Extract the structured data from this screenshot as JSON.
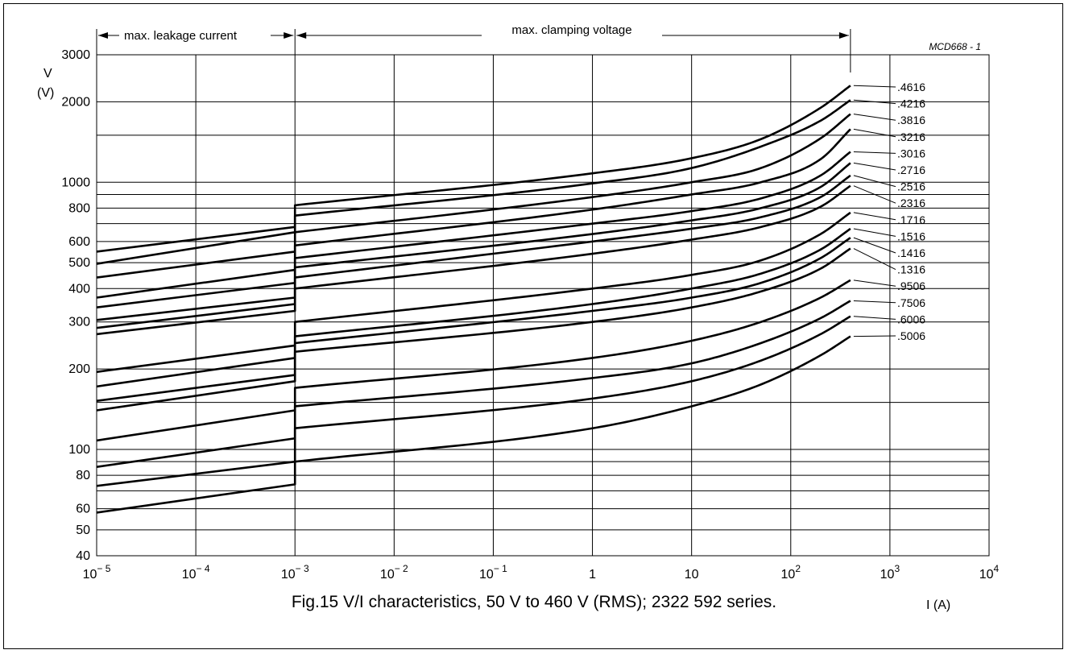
{
  "chart_data": {
    "type": "line",
    "title": "Fig.15  V/I characteristics, 50 V to 460 V (RMS); 2322 592 series.",
    "figure_code": "MCD668 - 1",
    "ylabel": "V",
    "ylabel_unit": "(V)",
    "xlabel": "I  (A)",
    "x_scale": "log",
    "y_scale": "log",
    "xlim": [
      1e-05,
      10000
    ],
    "ylim": [
      40,
      3000
    ],
    "x_ticks": [
      {
        "value": 1e-05,
        "base": "10",
        "exp": "− 5"
      },
      {
        "value": 0.0001,
        "base": "10",
        "exp": "− 4"
      },
      {
        "value": 0.001,
        "base": "10",
        "exp": "− 3"
      },
      {
        "value": 0.01,
        "base": "10",
        "exp": "− 2"
      },
      {
        "value": 0.1,
        "base": "10",
        "exp": "− 1"
      },
      {
        "value": 1,
        "base": "1",
        "exp": ""
      },
      {
        "value": 10,
        "base": "10",
        "exp": ""
      },
      {
        "value": 100,
        "base": "10",
        "exp": "2"
      },
      {
        "value": 1000,
        "base": "10",
        "exp": "3"
      },
      {
        "value": 10000,
        "base": "10",
        "exp": "4"
      }
    ],
    "y_tick_labels": [
      {
        "value": 40,
        "label": "40"
      },
      {
        "value": 50,
        "label": "50"
      },
      {
        "value": 60,
        "label": "60"
      },
      {
        "value": 80,
        "label": "80"
      },
      {
        "value": 100,
        "label": "100"
      },
      {
        "value": 200,
        "label": "200"
      },
      {
        "value": 300,
        "label": "300"
      },
      {
        "value": 400,
        "label": "400"
      },
      {
        "value": 500,
        "label": "500"
      },
      {
        "value": 600,
        "label": "600"
      },
      {
        "value": 800,
        "label": "800"
      },
      {
        "value": 1000,
        "label": "1000"
      },
      {
        "value": 2000,
        "label": "2000"
      },
      {
        "value": 3000,
        "label": "3000"
      }
    ],
    "y_gridlines": [
      50,
      60,
      70,
      80,
      90,
      100,
      150,
      200,
      300,
      400,
      500,
      600,
      700,
      800,
      900,
      1000,
      1500,
      2000
    ],
    "grid": true,
    "annotations": {
      "leakage_label": "max. leakage current",
      "clamping_label": "max. clamping voltage",
      "leakage_range": [
        1e-05,
        0.001
      ],
      "clamping_range": [
        0.001,
        400
      ]
    },
    "series": [
      {
        "name": ".4616",
        "label_v": 2300,
        "leak": [
          [
            1e-05,
            550
          ],
          [
            0.001,
            680
          ]
        ],
        "clamp": [
          [
            0.001,
            820
          ],
          [
            1,
            1080
          ],
          [
            10,
            1230
          ],
          [
            50,
            1450
          ],
          [
            200,
            1900
          ],
          [
            400,
            2300
          ]
        ]
      },
      {
        "name": ".4216",
        "label_v": 2040,
        "leak": [
          [
            1e-05,
            495
          ],
          [
            0.001,
            650
          ]
        ],
        "clamp": [
          [
            0.001,
            750
          ],
          [
            1,
            990
          ],
          [
            10,
            1130
          ],
          [
            50,
            1360
          ],
          [
            200,
            1700
          ],
          [
            400,
            2030
          ]
        ]
      },
      {
        "name": ".3816",
        "label_v": 1850,
        "leak": [
          [
            1e-05,
            440
          ],
          [
            0.001,
            550
          ]
        ],
        "clamp": [
          [
            0.001,
            650
          ],
          [
            1,
            880
          ],
          [
            10,
            1000
          ],
          [
            50,
            1130
          ],
          [
            200,
            1460
          ],
          [
            400,
            1800
          ]
        ]
      },
      {
        "name": ".3216",
        "label_v": 1500,
        "leak": [
          [
            1e-05,
            370
          ],
          [
            0.001,
            470
          ]
        ],
        "clamp": [
          [
            0.001,
            580
          ],
          [
            1,
            790
          ],
          [
            10,
            900
          ],
          [
            50,
            1000
          ],
          [
            200,
            1220
          ],
          [
            400,
            1580
          ]
        ]
      },
      {
        "name": ".3016",
        "label_v": 1300,
        "leak": [
          [
            1e-05,
            340
          ],
          [
            0.001,
            420
          ]
        ],
        "clamp": [
          [
            0.001,
            520
          ],
          [
            1,
            700
          ],
          [
            10,
            780
          ],
          [
            50,
            870
          ],
          [
            200,
            1060
          ],
          [
            400,
            1300
          ]
        ]
      },
      {
        "name": ".2716",
        "label_v": 1130,
        "leak": [
          [
            1e-05,
            305
          ],
          [
            0.001,
            370
          ]
        ],
        "clamp": [
          [
            0.001,
            480
          ],
          [
            1,
            640
          ],
          [
            10,
            720
          ],
          [
            50,
            800
          ],
          [
            200,
            960
          ],
          [
            400,
            1180
          ]
        ]
      },
      {
        "name": ".2516",
        "label_v": 980,
        "leak": [
          [
            1e-05,
            285
          ],
          [
            0.001,
            350
          ]
        ],
        "clamp": [
          [
            0.001,
            440
          ],
          [
            1,
            600
          ],
          [
            10,
            670
          ],
          [
            50,
            740
          ],
          [
            200,
            880
          ],
          [
            400,
            1060
          ]
        ]
      },
      {
        "name": ".2316",
        "label_v": 850,
        "leak": [
          [
            1e-05,
            270
          ],
          [
            0.001,
            330
          ]
        ],
        "clamp": [
          [
            0.001,
            400
          ],
          [
            1,
            540
          ],
          [
            10,
            610
          ],
          [
            50,
            680
          ],
          [
            200,
            810
          ],
          [
            400,
            970
          ]
        ]
      },
      {
        "name": ".1716",
        "label_v": 700,
        "leak": [
          [
            1e-05,
            195
          ],
          [
            0.001,
            245
          ]
        ],
        "clamp": [
          [
            0.001,
            300
          ],
          [
            1,
            400
          ],
          [
            10,
            450
          ],
          [
            50,
            510
          ],
          [
            200,
            640
          ],
          [
            400,
            770
          ]
        ]
      },
      {
        "name": ".1516",
        "label_v": 600,
        "leak": [
          [
            1e-05,
            172
          ],
          [
            0.001,
            220
          ]
        ],
        "clamp": [
          [
            0.001,
            265
          ],
          [
            1,
            350
          ],
          [
            10,
            400
          ],
          [
            50,
            455
          ],
          [
            200,
            560
          ],
          [
            400,
            670
          ]
        ]
      },
      {
        "name": ".1416",
        "label_v": 530,
        "leak": [
          [
            1e-05,
            152
          ],
          [
            0.001,
            190
          ]
        ],
        "clamp": [
          [
            0.001,
            250
          ],
          [
            1,
            330
          ],
          [
            10,
            370
          ],
          [
            50,
            420
          ],
          [
            200,
            520
          ],
          [
            400,
            620
          ]
        ]
      },
      {
        "name": ".1316",
        "label_v": 470,
        "leak": [
          [
            1e-05,
            140
          ],
          [
            0.001,
            180
          ]
        ],
        "clamp": [
          [
            0.001,
            232
          ],
          [
            1,
            300
          ],
          [
            10,
            340
          ],
          [
            50,
            390
          ],
          [
            200,
            475
          ],
          [
            400,
            565
          ]
        ]
      },
      {
        "name": ".9506",
        "label_v": 400,
        "leak": [
          [
            1e-05,
            108
          ],
          [
            0.001,
            140
          ]
        ],
        "clamp": [
          [
            0.001,
            170
          ],
          [
            1,
            220
          ],
          [
            10,
            255
          ],
          [
            50,
            300
          ],
          [
            200,
            370
          ],
          [
            400,
            430
          ]
        ]
      },
      {
        "name": ".7506",
        "label_v": 350,
        "leak": [
          [
            1e-05,
            86
          ],
          [
            0.001,
            110
          ]
        ],
        "clamp": [
          [
            0.001,
            145
          ],
          [
            1,
            185
          ],
          [
            10,
            210
          ],
          [
            50,
            250
          ],
          [
            200,
            310
          ],
          [
            400,
            360
          ]
        ]
      },
      {
        "name": ".6006",
        "label_v": 305,
        "leak": [
          [
            1e-05,
            73
          ],
          [
            0.001,
            90
          ]
        ],
        "clamp": [
          [
            0.001,
            120
          ],
          [
            1,
            155
          ],
          [
            10,
            180
          ],
          [
            50,
            215
          ],
          [
            200,
            270
          ],
          [
            400,
            315
          ]
        ]
      },
      {
        "name": ".5006",
        "label_v": 265,
        "leak": [
          [
            1e-05,
            58
          ],
          [
            0.001,
            74
          ]
        ],
        "clamp": [
          [
            0.001,
            90
          ],
          [
            1,
            120
          ],
          [
            10,
            145
          ],
          [
            50,
            175
          ],
          [
            200,
            225
          ],
          [
            400,
            265
          ]
        ]
      }
    ]
  }
}
